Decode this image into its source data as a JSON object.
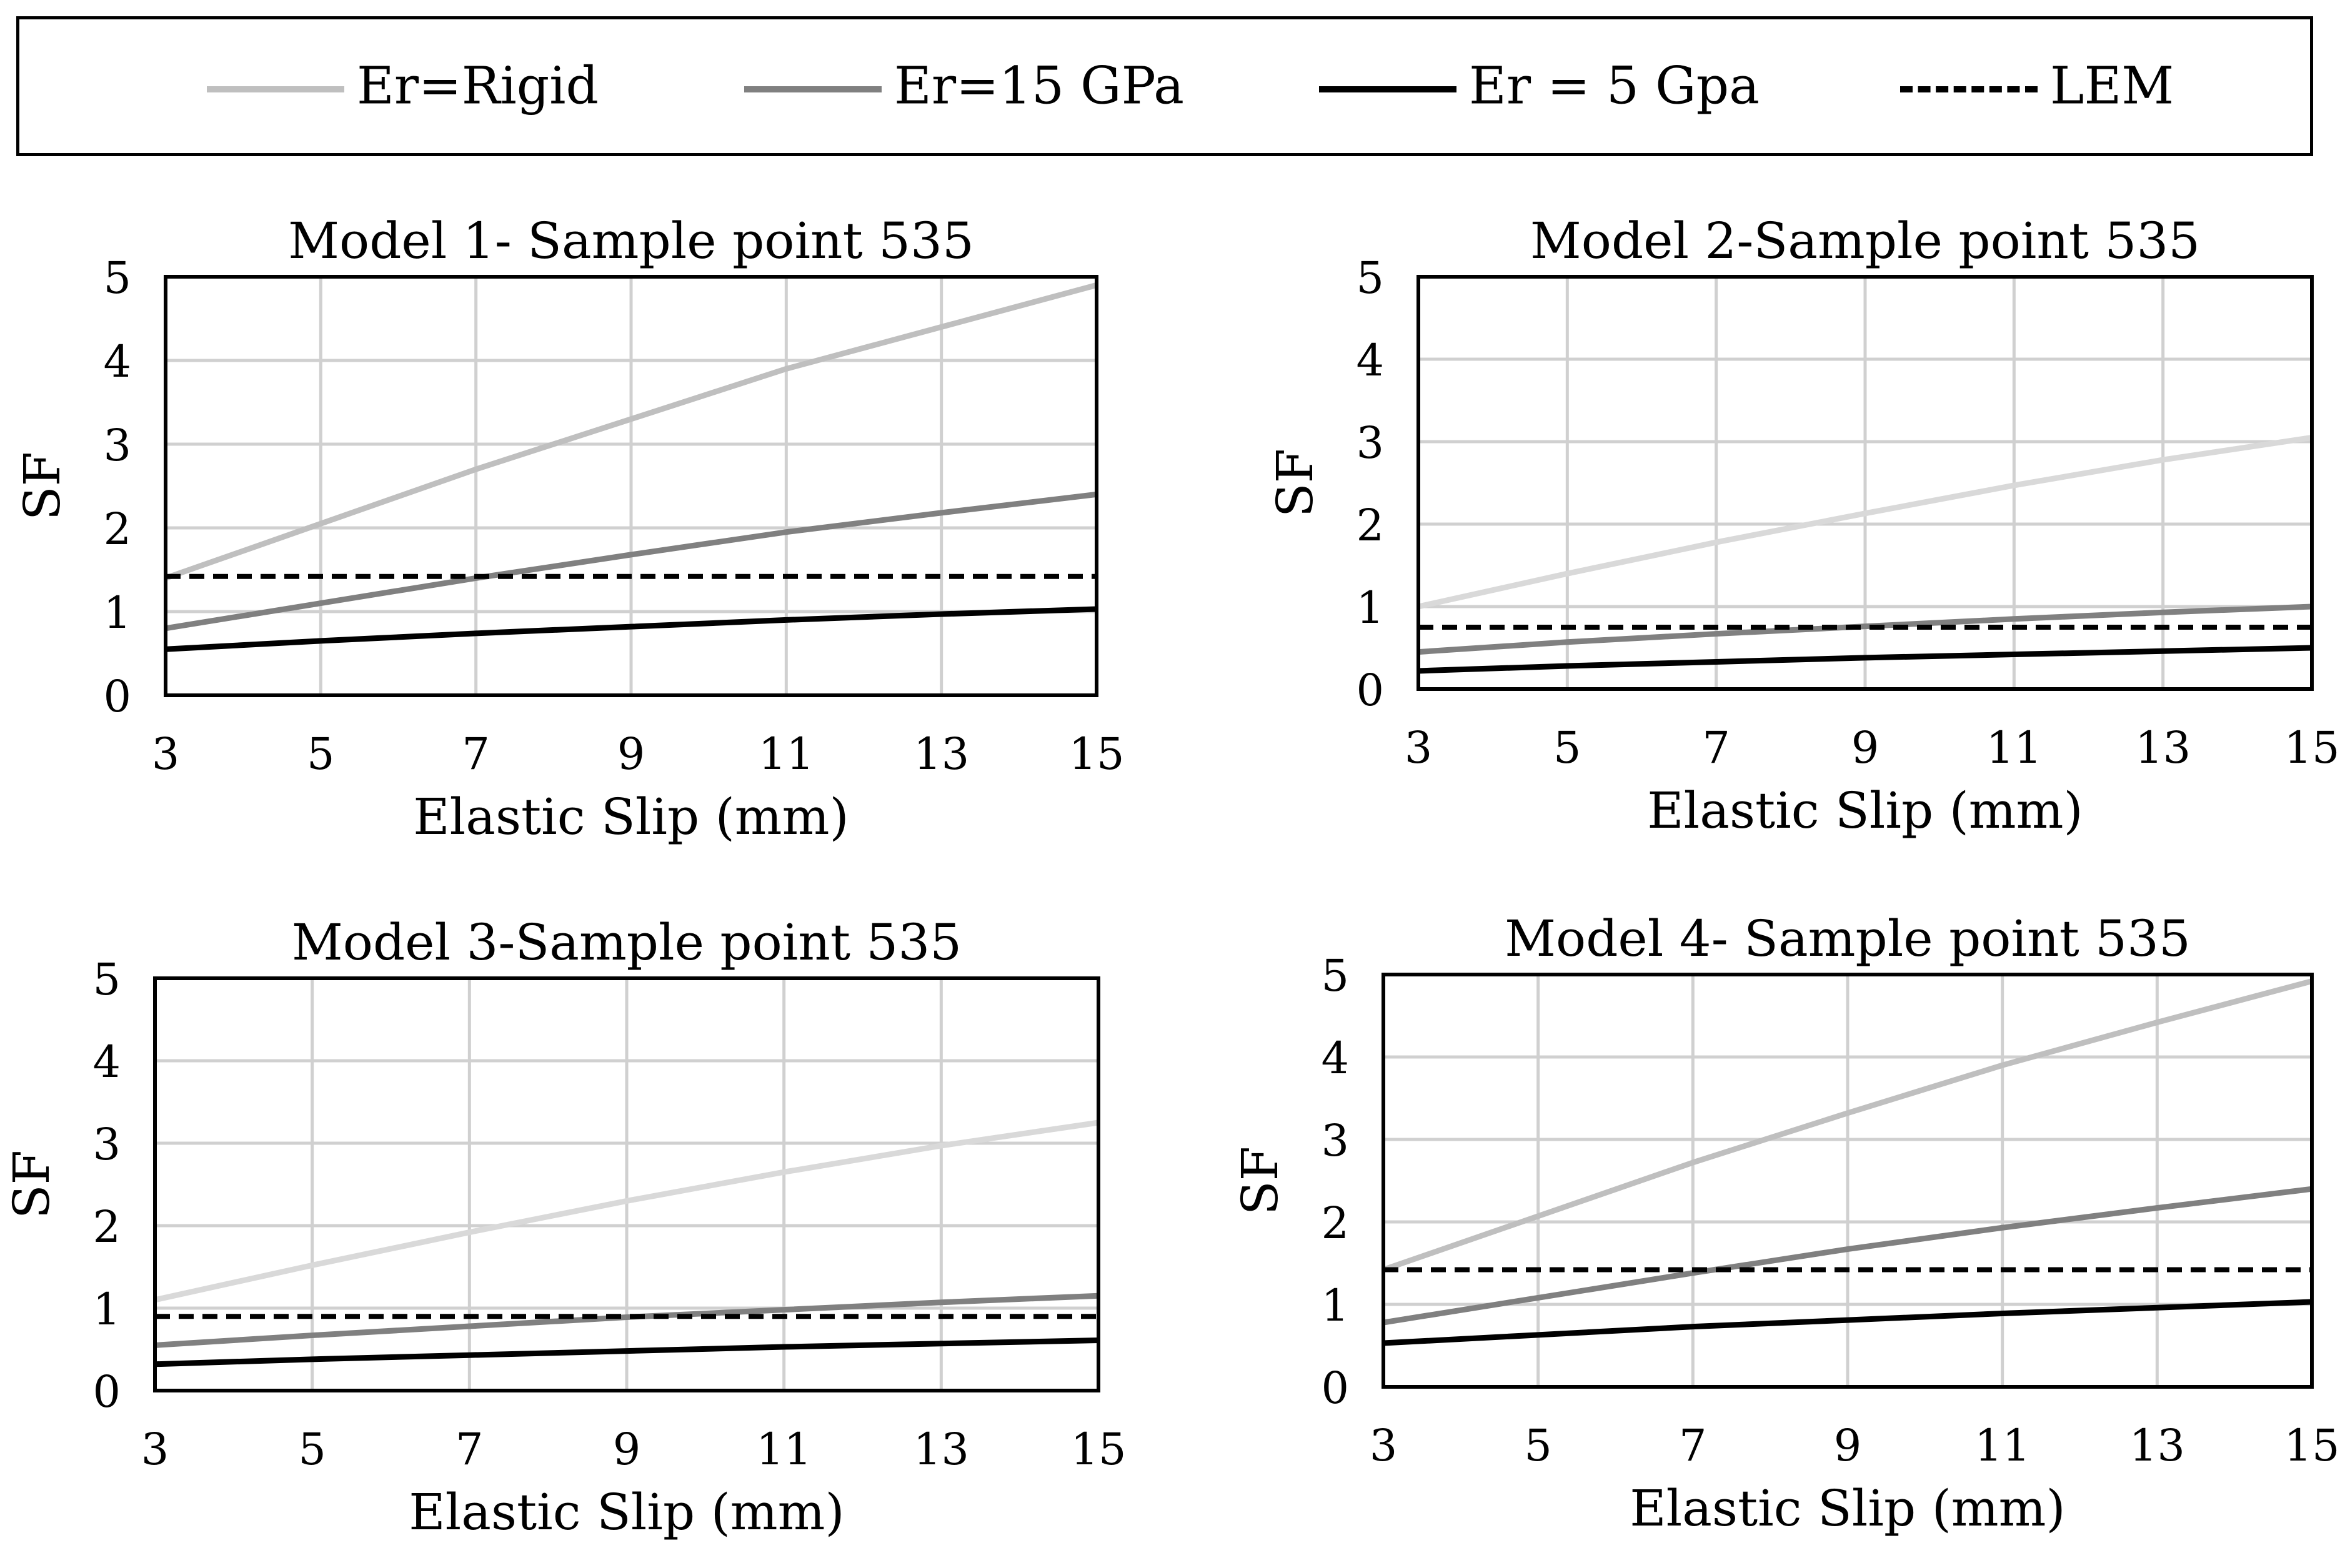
{
  "legend": {
    "items": [
      {
        "label": "Er=Rigid",
        "color": "#bfbfbf",
        "dash": "solid"
      },
      {
        "label": "Er=15 GPa",
        "color": "#808080",
        "dash": "solid"
      },
      {
        "label": "Er = 5 Gpa",
        "color": "#000000",
        "dash": "solid"
      },
      {
        "label": "LEM",
        "color": "#000000",
        "dash": "dashed"
      }
    ]
  },
  "chart_data": [
    {
      "type": "line",
      "title": "Model 1- Sample point 535",
      "xlabel": "Elastic Slip (mm)",
      "ylabel": "SF",
      "xlim": [
        3,
        15
      ],
      "ylim": [
        0,
        5
      ],
      "xticks": [
        3,
        5,
        7,
        9,
        11,
        13,
        15
      ],
      "yticks": [
        0,
        1,
        2,
        3,
        4,
        5
      ],
      "x": [
        3,
        5,
        7,
        9,
        11,
        13,
        15
      ],
      "series": [
        {
          "name": "Er=Rigid",
          "color": "#bfbfbf",
          "dash": "solid",
          "values": [
            1.4,
            2.05,
            2.7,
            3.3,
            3.9,
            4.4,
            4.9
          ]
        },
        {
          "name": "Er=15 GPa",
          "color": "#808080",
          "dash": "solid",
          "values": [
            0.8,
            1.1,
            1.4,
            1.68,
            1.95,
            2.18,
            2.4
          ]
        },
        {
          "name": "Er = 5 Gpa",
          "color": "#000000",
          "dash": "solid",
          "values": [
            0.55,
            0.65,
            0.74,
            0.82,
            0.9,
            0.97,
            1.03
          ]
        },
        {
          "name": "LEM",
          "color": "#000000",
          "dash": "dashed",
          "values": [
            1.42,
            1.42,
            1.42,
            1.42,
            1.42,
            1.42,
            1.42
          ]
        }
      ]
    },
    {
      "type": "line",
      "title": "Model 2-Sample point 535",
      "xlabel": "Elastic Slip (mm)",
      "ylabel": "SF",
      "xlim": [
        3,
        15
      ],
      "ylim": [
        0,
        5
      ],
      "xticks": [
        3,
        5,
        7,
        9,
        11,
        13,
        15
      ],
      "yticks": [
        0,
        1,
        2,
        3,
        4,
        5
      ],
      "x": [
        3,
        5,
        7,
        9,
        11,
        13,
        15
      ],
      "series": [
        {
          "name": "Er=Rigid",
          "color": "#d9d9d9",
          "dash": "solid",
          "values": [
            1.0,
            1.4,
            1.78,
            2.13,
            2.47,
            2.78,
            3.05
          ]
        },
        {
          "name": "Er=15 GPa",
          "color": "#808080",
          "dash": "solid",
          "values": [
            0.45,
            0.57,
            0.67,
            0.76,
            0.85,
            0.93,
            1.0
          ]
        },
        {
          "name": "Er = 5 Gpa",
          "color": "#000000",
          "dash": "solid",
          "values": [
            0.22,
            0.28,
            0.33,
            0.38,
            0.42,
            0.46,
            0.5
          ]
        },
        {
          "name": "LEM",
          "color": "#000000",
          "dash": "dashed",
          "values": [
            0.75,
            0.75,
            0.75,
            0.75,
            0.75,
            0.75,
            0.75
          ]
        }
      ]
    },
    {
      "type": "line",
      "title": "Model 3-Sample point 535",
      "xlabel": "Elastic Slip (mm)",
      "ylabel": "SF",
      "xlim": [
        3,
        15
      ],
      "ylim": [
        0,
        5
      ],
      "xticks": [
        3,
        5,
        7,
        9,
        11,
        13,
        15
      ],
      "yticks": [
        0,
        1,
        2,
        3,
        4,
        5
      ],
      "x": [
        3,
        5,
        7,
        9,
        11,
        13,
        15
      ],
      "series": [
        {
          "name": "Er=Rigid",
          "color": "#d9d9d9",
          "dash": "solid",
          "values": [
            1.1,
            1.52,
            1.92,
            2.3,
            2.65,
            2.97,
            3.25
          ]
        },
        {
          "name": "Er=15 GPa",
          "color": "#808080",
          "dash": "solid",
          "values": [
            0.55,
            0.67,
            0.78,
            0.89,
            0.98,
            1.07,
            1.15
          ]
        },
        {
          "name": "Er = 5 Gpa",
          "color": "#000000",
          "dash": "solid",
          "values": [
            0.32,
            0.38,
            0.43,
            0.48,
            0.53,
            0.57,
            0.61
          ]
        },
        {
          "name": "LEM",
          "color": "#000000",
          "dash": "dashed",
          "values": [
            0.9,
            0.9,
            0.9,
            0.9,
            0.9,
            0.9,
            0.9
          ]
        }
      ]
    },
    {
      "type": "line",
      "title": "Model 4- Sample point 535",
      "xlabel": "Elastic Slip (mm)",
      "ylabel": "SF",
      "xlim": [
        3,
        15
      ],
      "ylim": [
        0,
        5
      ],
      "xticks": [
        3,
        5,
        7,
        9,
        11,
        13,
        15
      ],
      "yticks": [
        0,
        1,
        2,
        3,
        4,
        5
      ],
      "x": [
        3,
        5,
        7,
        9,
        11,
        13,
        15
      ],
      "series": [
        {
          "name": "Er=Rigid",
          "color": "#bfbfbf",
          "dash": "solid",
          "values": [
            1.42,
            2.07,
            2.72,
            3.32,
            3.9,
            4.42,
            4.92
          ]
        },
        {
          "name": "Er=15 GPa",
          "color": "#808080",
          "dash": "solid",
          "values": [
            0.78,
            1.08,
            1.38,
            1.67,
            1.93,
            2.17,
            2.4
          ]
        },
        {
          "name": "Er = 5 Gpa",
          "color": "#000000",
          "dash": "solid",
          "values": [
            0.53,
            0.63,
            0.73,
            0.81,
            0.89,
            0.96,
            1.03
          ]
        },
        {
          "name": "LEM",
          "color": "#000000",
          "dash": "dashed",
          "values": [
            1.42,
            1.42,
            1.42,
            1.42,
            1.42,
            1.42,
            1.42
          ]
        }
      ]
    }
  ]
}
